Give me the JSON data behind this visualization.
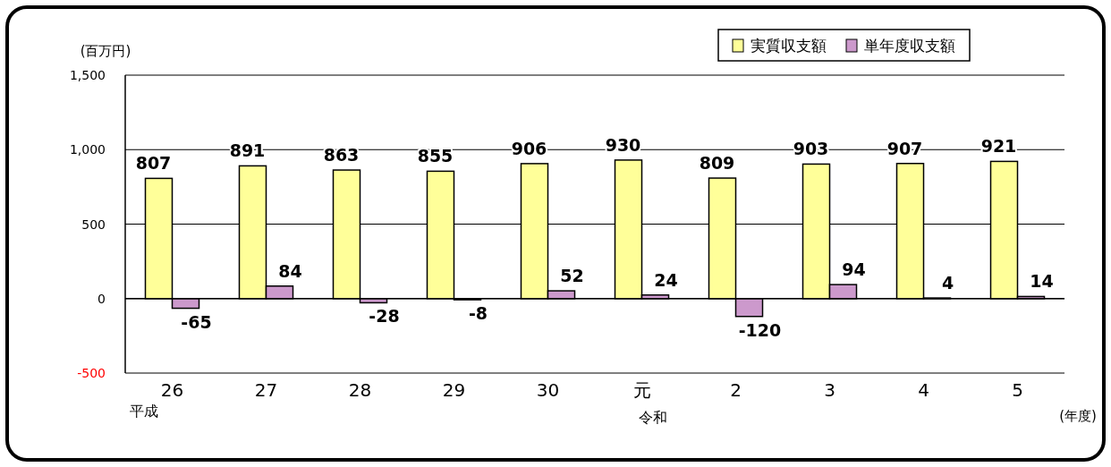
{
  "chart_data": {
    "type": "bar",
    "ylabel": "(百万円)",
    "xlabel": "(年度)",
    "categories": [
      "26",
      "27",
      "28",
      "29",
      "30",
      "元",
      "2",
      "3",
      "4",
      "5"
    ],
    "series": [
      {
        "name": "実質収支額",
        "color": "#ffff99",
        "values": [
          807,
          891,
          863,
          855,
          906,
          930,
          809,
          903,
          907,
          921
        ]
      },
      {
        "name": "単年度収支額",
        "color": "#cc99cc",
        "values": [
          -65,
          84,
          -28,
          -8,
          52,
          24,
          -120,
          94,
          4,
          14
        ]
      }
    ],
    "ylim": [
      -500,
      1500
    ],
    "yticks": [
      {
        "value": -500,
        "label": "-500"
      },
      0,
      {
        "value": 500,
        "label": "500"
      },
      {
        "value": 1000,
        "label": "1,000"
      },
      {
        "value": 1500,
        "label": "1,500"
      }
    ],
    "annotations": [
      "平成",
      "令和"
    ],
    "grid": "y",
    "legend": "top right",
    "data_labels": true
  }
}
